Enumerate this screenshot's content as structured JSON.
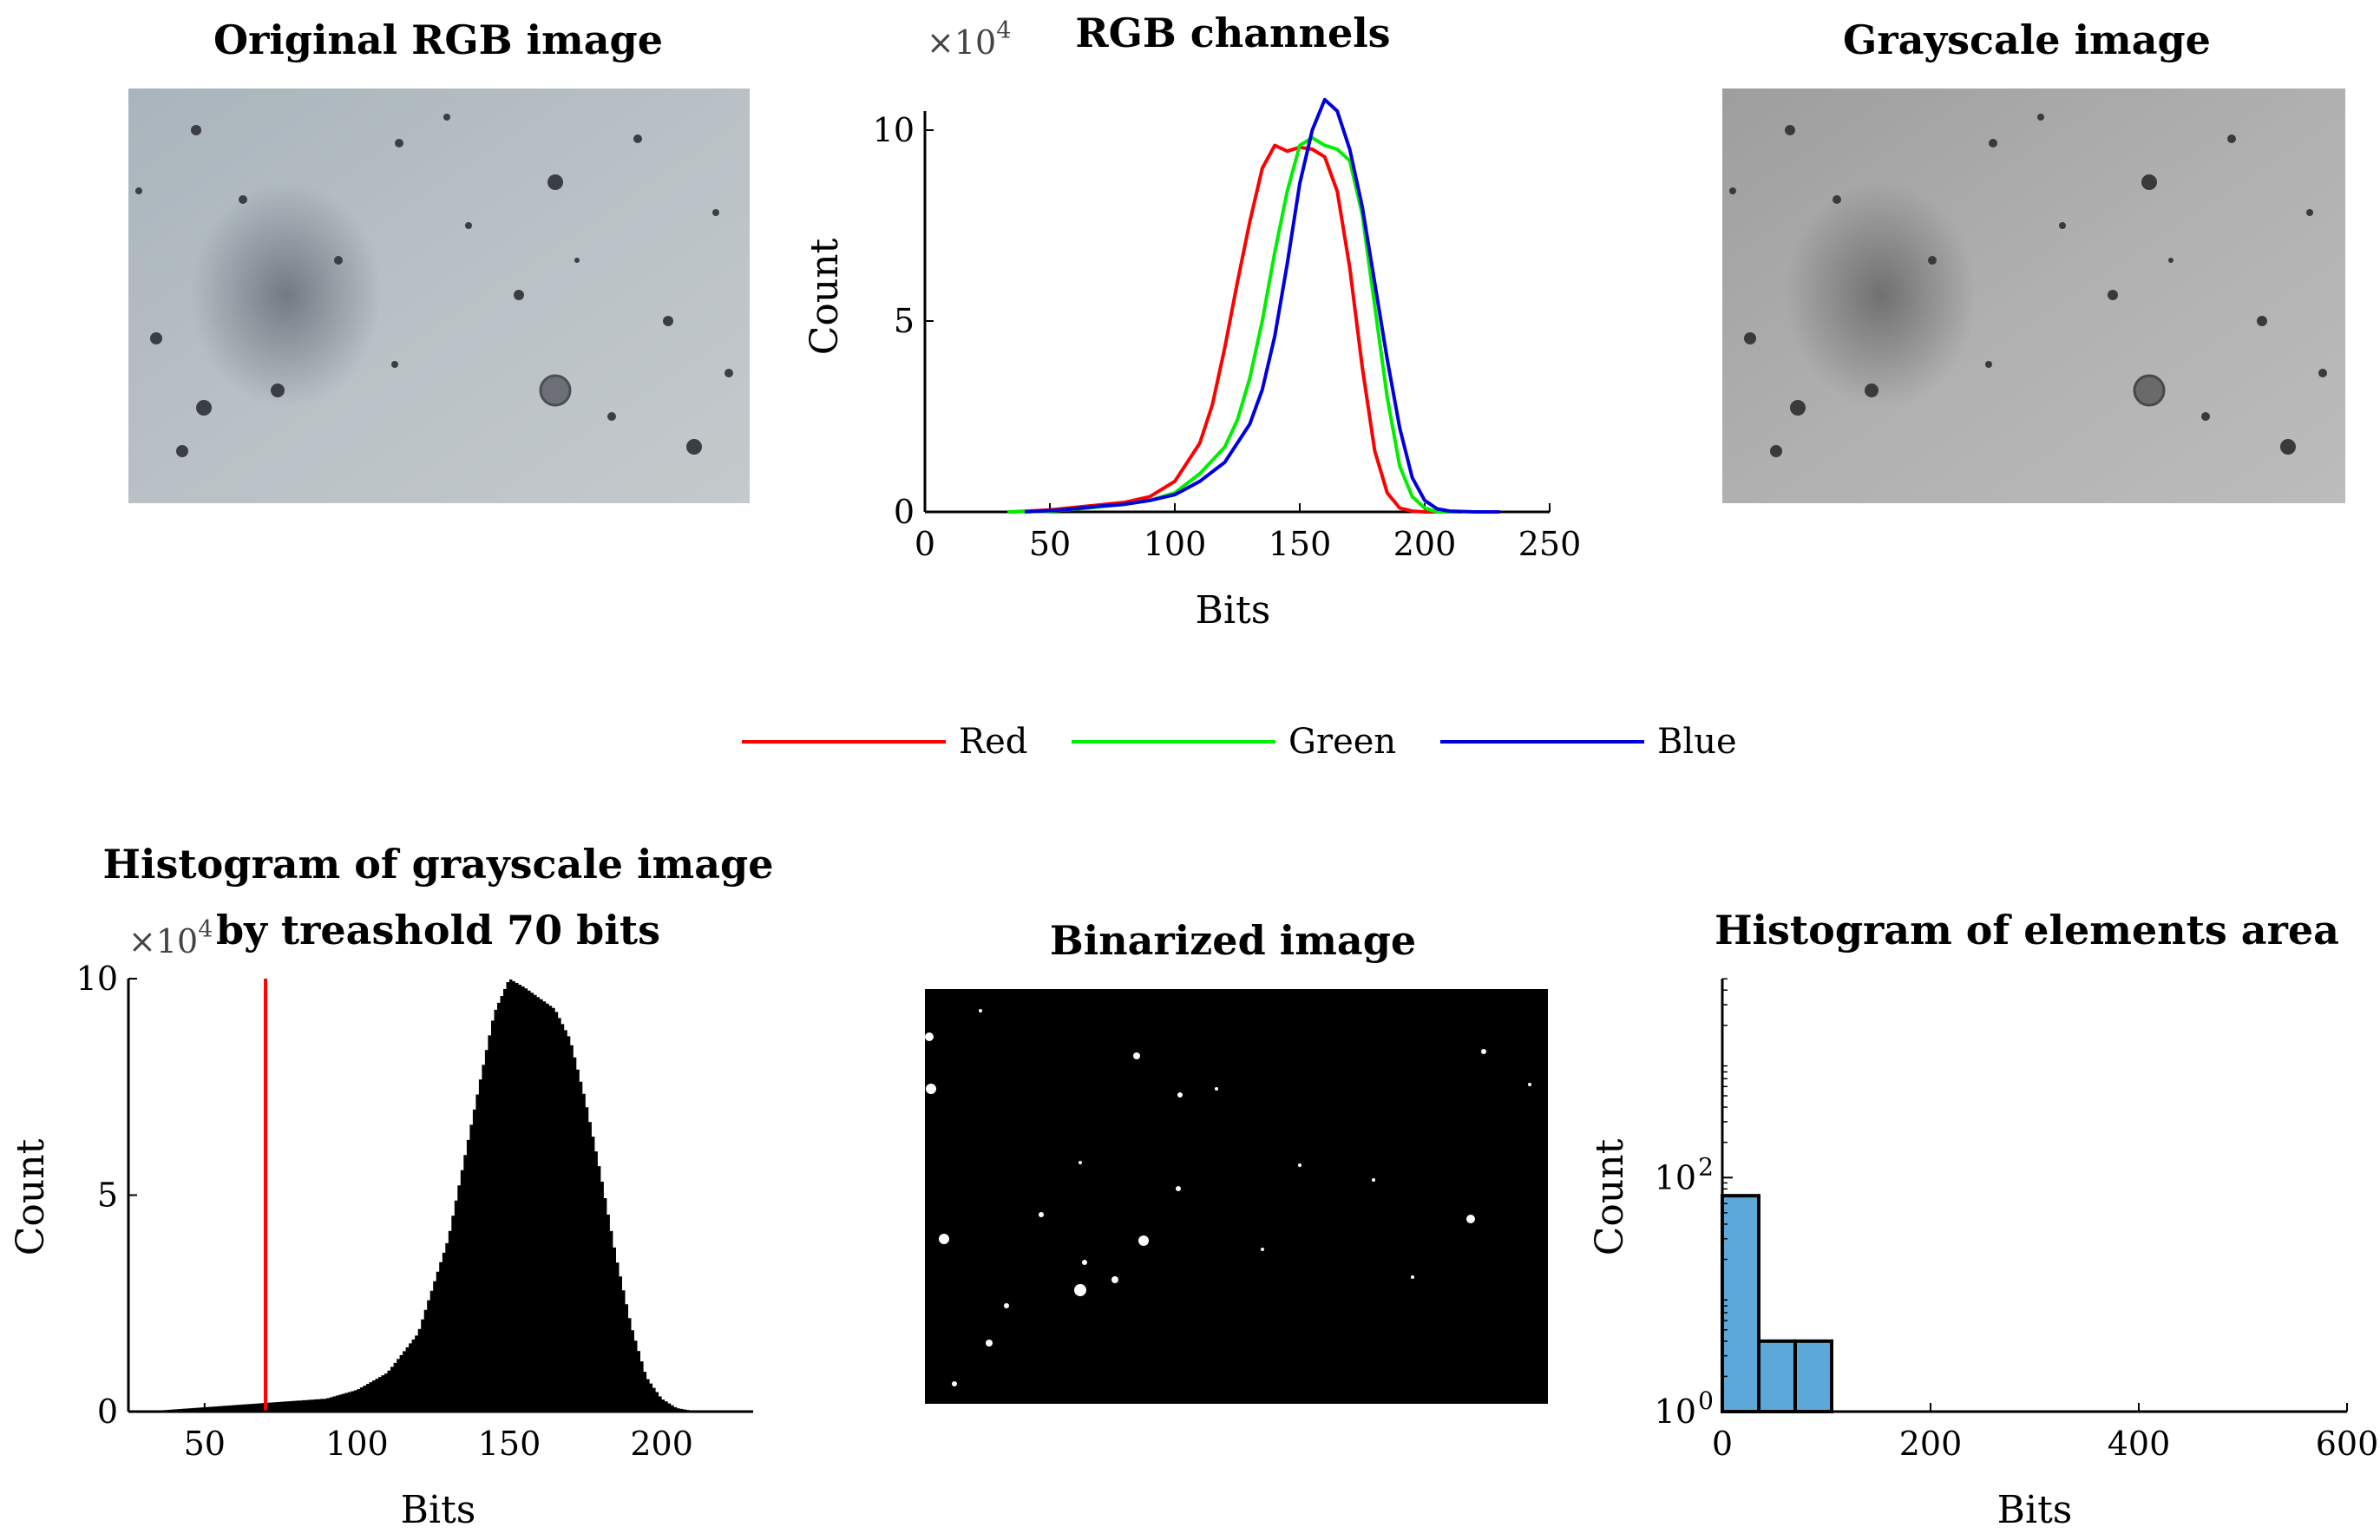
{
  "figure": {
    "panel_titles": {
      "original": "Original RGB image",
      "rgb": "RGB channels",
      "gray": "Grayscale image",
      "hist_line1": "Histogram of grayscale image",
      "hist_line2": "by treashold 70 bits",
      "binarized": "Binarized image",
      "area": "Histogram of elements area"
    }
  },
  "chart_data": [
    {
      "id": "rgb_channels",
      "type": "line",
      "title": "RGB channels",
      "xlabel": "Bits",
      "ylabel": "Count",
      "multiplier": "×10",
      "multiplier_exp": "4",
      "xlim": [
        0,
        250
      ],
      "ylim": [
        0,
        10.5
      ],
      "xticks": [
        0,
        50,
        100,
        150,
        200,
        250
      ],
      "yticks": [
        0,
        5,
        10
      ],
      "series": [
        {
          "name": "Red",
          "color": "#ff0000",
          "x": [
            35,
            50,
            65,
            80,
            90,
            100,
            110,
            115,
            120,
            125,
            130,
            135,
            140,
            145,
            150,
            155,
            160,
            165,
            170,
            175,
            180,
            185,
            190,
            195,
            200,
            210
          ],
          "y": [
            0,
            0.05,
            0.15,
            0.25,
            0.4,
            0.8,
            1.8,
            2.8,
            4.3,
            6.0,
            7.6,
            9.0,
            9.6,
            9.45,
            9.55,
            9.5,
            9.3,
            8.4,
            6.4,
            3.8,
            1.6,
            0.5,
            0.1,
            0.02,
            0,
            0
          ]
        },
        {
          "name": "Green",
          "color": "#00ee00",
          "x": [
            33,
            50,
            65,
            80,
            90,
            100,
            110,
            120,
            125,
            130,
            135,
            140,
            145,
            150,
            155,
            160,
            165,
            170,
            175,
            180,
            185,
            190,
            195,
            200,
            205,
            215
          ],
          "y": [
            0,
            0.02,
            0.1,
            0.2,
            0.3,
            0.5,
            1.0,
            1.7,
            2.4,
            3.5,
            5.0,
            6.8,
            8.4,
            9.6,
            9.8,
            9.6,
            9.5,
            9.2,
            7.8,
            5.4,
            3.0,
            1.2,
            0.4,
            0.1,
            0,
            0
          ]
        },
        {
          "name": "Blue",
          "color": "#0000dd",
          "x": [
            40,
            55,
            70,
            80,
            90,
            100,
            110,
            120,
            130,
            135,
            140,
            145,
            150,
            155,
            160,
            165,
            170,
            175,
            180,
            185,
            190,
            195,
            200,
            205,
            210,
            220,
            230
          ],
          "y": [
            0,
            0.05,
            0.15,
            0.2,
            0.3,
            0.45,
            0.8,
            1.3,
            2.3,
            3.2,
            4.6,
            6.5,
            8.6,
            10.0,
            10.8,
            10.5,
            9.5,
            8.0,
            6.0,
            4.0,
            2.2,
            0.9,
            0.3,
            0.08,
            0.02,
            0,
            0
          ]
        }
      ]
    },
    {
      "id": "grayscale_histogram",
      "type": "bar",
      "title": "Histogram of grayscale image by treashold 70 bits",
      "xlabel": "Bits",
      "ylabel": "Count",
      "multiplier": "×10",
      "multiplier_exp": "4",
      "xlim": [
        25,
        230
      ],
      "ylim": [
        0,
        10
      ],
      "xticks": [
        50,
        100,
        150,
        200
      ],
      "yticks": [
        0,
        5,
        10
      ],
      "threshold": 70,
      "threshold_color": "#ff0000",
      "bar_color": "#000000",
      "profile_x": [
        30,
        40,
        50,
        60,
        70,
        80,
        90,
        100,
        110,
        120,
        130,
        140,
        145,
        150,
        155,
        160,
        165,
        170,
        175,
        180,
        185,
        190,
        195,
        200,
        205,
        210,
        215
      ],
      "profile_y": [
        0,
        0.05,
        0.1,
        0.15,
        0.2,
        0.25,
        0.3,
        0.5,
        0.9,
        1.8,
        4.0,
        7.5,
        9.2,
        10.0,
        9.8,
        9.55,
        9.3,
        8.6,
        7.2,
        5.5,
        3.6,
        2.0,
        0.8,
        0.3,
        0.08,
        0.02,
        0
      ]
    },
    {
      "id": "elements_area_histogram",
      "type": "bar",
      "title": "Histogram of elements area",
      "xlabel": "Bits",
      "ylabel": "Count",
      "yscale": "log",
      "xlim": [
        0,
        600
      ],
      "ylim_log10": [
        0,
        3.7
      ],
      "xticks": [
        0,
        200,
        400,
        600
      ],
      "ytick_base": "10",
      "ytick_exps": [
        "0",
        "2"
      ],
      "bar_color": "#5ca8d8",
      "bin_edges": [
        0,
        35,
        70,
        105,
        140,
        175,
        210,
        245,
        280,
        315,
        350,
        385,
        420,
        455,
        490,
        525,
        560,
        595
      ],
      "counts": [
        70,
        4,
        4,
        0,
        0,
        0,
        0,
        0,
        0,
        0,
        0,
        0,
        0,
        0,
        0,
        0,
        0
      ]
    }
  ],
  "legend": {
    "entries": [
      {
        "label": "Red",
        "color": "#ff0000"
      },
      {
        "label": "Green",
        "color": "#00ee00"
      },
      {
        "label": "Blue",
        "color": "#0000dd"
      }
    ]
  }
}
